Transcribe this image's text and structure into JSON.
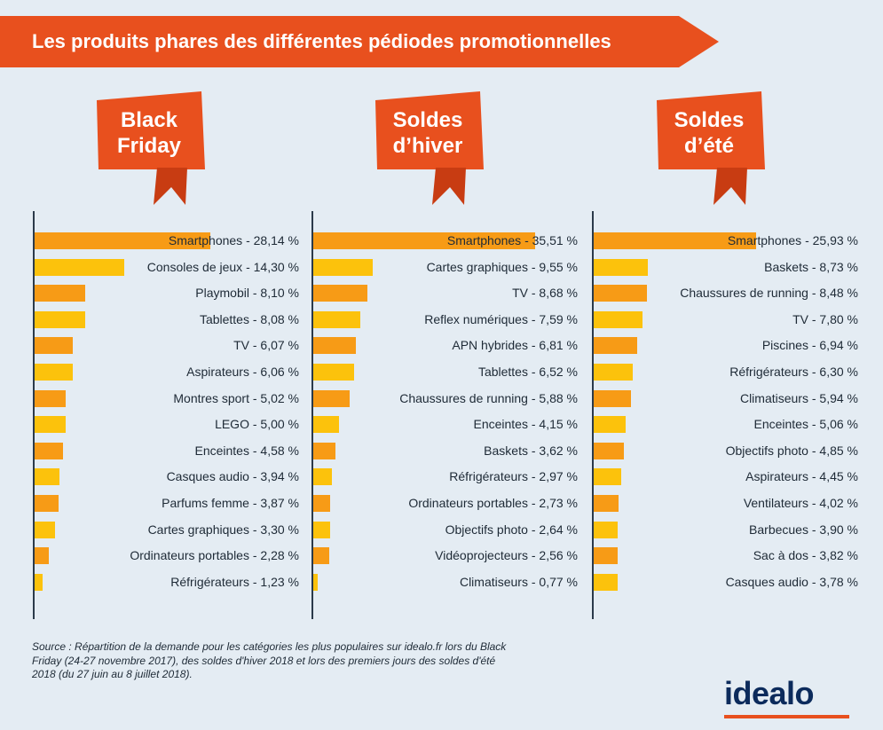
{
  "header": {
    "title": "Les produits phares des différentes pédiodes promotionnelles"
  },
  "colors": {
    "accent": "#e8501e",
    "bar_orange": "#f79b16",
    "bar_yellow": "#fcc20c",
    "logo": "#0c2b5c",
    "background": "#e4ecf3"
  },
  "chart_data": [
    {
      "type": "bar",
      "orientation": "horizontal",
      "title": "Black\nFriday",
      "xlim": [
        0,
        35.51
      ],
      "categories": [
        "Smartphones",
        "Consoles de jeux",
        "Playmobil",
        "Tablettes",
        "TV",
        "Aspirateurs",
        "Montres sport",
        "LEGO",
        "Enceintes",
        "Casques audio",
        "Parfums femme",
        "Cartes graphiques",
        "Ordinateurs portables",
        "Réfrigérateurs"
      ],
      "values": [
        28.14,
        14.3,
        8.1,
        8.08,
        6.07,
        6.06,
        5.02,
        5.0,
        4.58,
        3.94,
        3.87,
        3.3,
        2.28,
        1.23
      ],
      "labels": [
        "Smartphones - 28,14 %",
        "Consoles de jeux - 14,30 %",
        "Playmobil - 8,10 %",
        "Tablettes - 8,08 %",
        "TV - 6,07 %",
        "Aspirateurs - 6,06 %",
        "Montres sport - 5,02 %",
        "LEGO - 5,00 %",
        "Enceintes - 4,58 %",
        "Casques audio - 3,94 %",
        "Parfums femme - 3,87 %",
        "Cartes graphiques - 3,30 %",
        "Ordinateurs portables - 2,28 %",
        "Réfrigérateurs - 1,23 %"
      ]
    },
    {
      "type": "bar",
      "orientation": "horizontal",
      "title": "Soldes\nd’hiver",
      "xlim": [
        0,
        35.51
      ],
      "categories": [
        "Smartphones",
        "Cartes graphiques",
        "TV",
        "Reflex numériques",
        "APN hybrides",
        "Tablettes",
        "Chaussures de running",
        "Enceintes",
        "Baskets",
        "Réfrigérateurs",
        "Ordinateurs portables",
        "Objectifs photo",
        "Vidéoprojecteurs",
        "Climatiseurs"
      ],
      "values": [
        35.51,
        9.55,
        8.68,
        7.59,
        6.81,
        6.52,
        5.88,
        4.15,
        3.62,
        2.97,
        2.73,
        2.64,
        2.56,
        0.77
      ],
      "labels": [
        "Smartphones - 35,51 %",
        "Cartes graphiques - 9,55 %",
        "TV - 8,68 %",
        "Reflex numériques - 7,59 %",
        "APN hybrides - 6,81 %",
        "Tablettes - 6,52 %",
        "Chaussures de running - 5,88 %",
        "Enceintes - 4,15 %",
        "Baskets - 3,62 %",
        "Réfrigérateurs - 2,97 %",
        "Ordinateurs portables - 2,73 %",
        "Objectifs photo - 2,64 %",
        "Vidéoprojecteurs - 2,56 %",
        "Climatiseurs - 0,77 %"
      ]
    },
    {
      "type": "bar",
      "orientation": "horizontal",
      "title": "Soldes\nd’été",
      "xlim": [
        0,
        35.51
      ],
      "categories": [
        "Smartphones",
        "Baskets",
        "Chaussures de running",
        "TV",
        "Piscines",
        "Réfrigérateurs",
        "Climatiseurs",
        "Enceintes",
        "Objectifs photo",
        "Aspirateurs",
        "Ventilateurs",
        "Barbecues",
        "Sac à dos",
        "Casques audio"
      ],
      "values": [
        25.93,
        8.73,
        8.48,
        7.8,
        6.94,
        6.3,
        5.94,
        5.06,
        4.85,
        4.45,
        4.02,
        3.9,
        3.82,
        3.78
      ],
      "labels": [
        "Smartphones - 25,93 %",
        "Baskets - 8,73 %",
        "Chaussures de running - 8,48 %",
        "TV - 7,80 %",
        "Piscines - 6,94 %",
        "Réfrigérateurs - 6,30 %",
        "Climatiseurs - 5,94 %",
        "Enceintes - 5,06 %",
        "Objectifs photo - 4,85 %",
        "Aspirateurs - 4,45 %",
        "Ventilateurs - 4,02 %",
        "Barbecues - 3,90 %",
        "Sac à dos - 3,82 %",
        "Casques audio - 3,78 %"
      ]
    }
  ],
  "source": "Source : Répartition de la demande pour les catégories les plus populaires sur idealo.fr lors du Black Friday (24-27 novembre 2017), des soldes d'hiver 2018 et lors des premiers jours des soldes d'été 2018 (du 27 juin au 8 juillet 2018).",
  "logo": {
    "text": "idealo"
  }
}
